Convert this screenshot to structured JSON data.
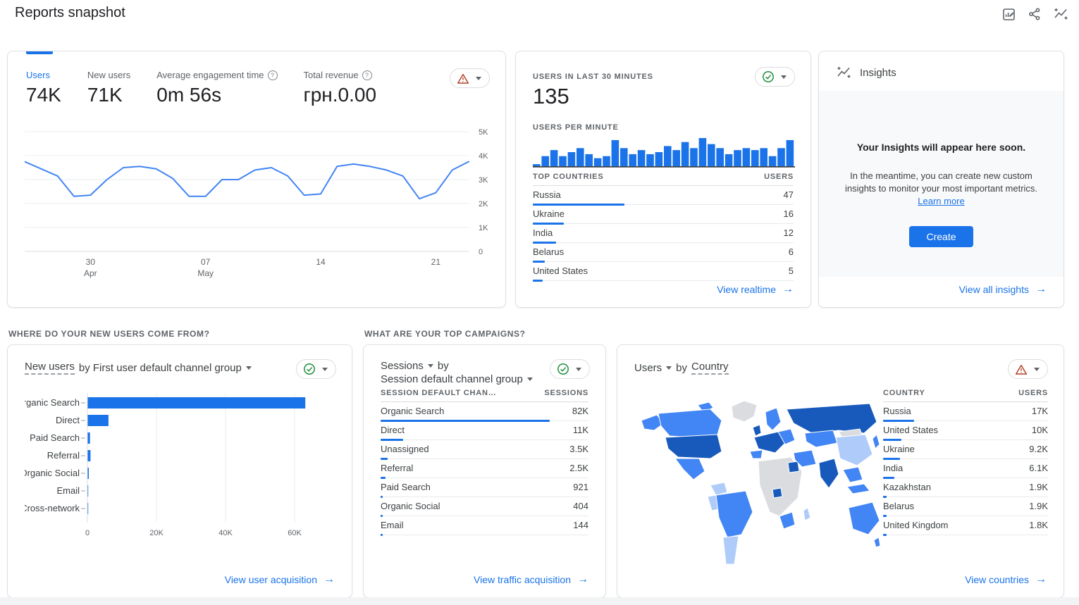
{
  "page": {
    "title": "Reports snapshot"
  },
  "colors": {
    "accent": "#1a73e8",
    "link": "#1a73e8",
    "line": "#4285f4",
    "bar": "#1a73e8",
    "warning": "#b3412c",
    "ok": "#1e8e3e",
    "map_dark": "#185abc",
    "map_medium": "#4285f4",
    "map_light": "#aecbfa",
    "map_nodata": "#dadce0"
  },
  "header_icons": [
    {
      "name": "customize-report-icon"
    },
    {
      "name": "share-icon"
    },
    {
      "name": "insights-icon"
    }
  ],
  "cards": {
    "snapshot": {
      "status_icon": "warning-icon",
      "metrics": [
        {
          "label": "Users",
          "value": "74K",
          "active": true
        },
        {
          "label": "New users",
          "value": "71K"
        },
        {
          "label": "Average engagement time",
          "value": "0m 56s",
          "help": true
        },
        {
          "label": "Total revenue",
          "value": "грн.0.00",
          "help": true
        }
      ],
      "chart_data": {
        "type": "line",
        "series": [
          {
            "name": "Users",
            "values_k": [
              3.75,
              3.45,
              3.15,
              2.3,
              2.35,
              3.0,
              3.5,
              3.55,
              3.45,
              3.05,
              2.3,
              2.3,
              3.0,
              3.0,
              3.4,
              3.5,
              3.15,
              2.35,
              2.4,
              3.55,
              3.65,
              3.55,
              3.4,
              3.15,
              2.2,
              2.45,
              3.4,
              3.75
            ]
          }
        ],
        "ylim_k": [
          0,
          5
        ],
        "y_ticks": [
          "0",
          "1K",
          "2K",
          "3K",
          "4K",
          "5K"
        ],
        "x_ticks": [
          {
            "i": 4,
            "l1": "30",
            "l2": "Apr"
          },
          {
            "i": 11,
            "l1": "07",
            "l2": "May"
          },
          {
            "i": 18,
            "l1": "14"
          },
          {
            "i": 25,
            "l1": "21"
          }
        ],
        "grid": true,
        "legend": "none"
      }
    },
    "realtime": {
      "title": "USERS IN LAST 30 MINUTES",
      "value": "135",
      "per_minute_label": "USERS PER MINUTE",
      "status_icon": "ok-check-icon",
      "chart_data": {
        "type": "bar",
        "title": "Users per minute",
        "values": [
          1,
          5,
          8,
          5,
          7,
          9,
          6,
          4,
          5,
          13,
          9,
          6,
          8,
          6,
          7,
          10,
          8,
          12,
          9,
          14,
          11,
          9,
          6,
          8,
          9,
          8,
          9,
          5,
          9,
          13
        ],
        "ymax": 14
      },
      "table": {
        "col1": "TOP COUNTRIES",
        "col2": "USERS",
        "rows": [
          {
            "label": "Russia",
            "value": "47",
            "num": 47
          },
          {
            "label": "Ukraine",
            "value": "16",
            "num": 16
          },
          {
            "label": "India",
            "value": "12",
            "num": 12
          },
          {
            "label": "Belarus",
            "value": "6",
            "num": 6
          },
          {
            "label": "United States",
            "value": "5",
            "num": 5
          }
        ]
      },
      "link": "View realtime"
    },
    "insights": {
      "title": "Insights",
      "headline": "Your Insights will appear here soon.",
      "body": "In the meantime, you can create new custom insights to monitor your most important metrics.",
      "inline_link": "Learn more",
      "button": "Create",
      "link": "View all insights"
    },
    "acquisition": {
      "section": "WHERE DO YOUR NEW USERS COME FROM?",
      "title_metric": "New users",
      "title_rest": "by First user default channel group",
      "status_icon": "ok-check-icon",
      "chart_data": {
        "type": "bar",
        "orientation": "horizontal",
        "title": "New users by First user default channel group",
        "categories": [
          "Organic Search",
          "Direct",
          "Paid Search",
          "Referral",
          "Organic Social",
          "Email",
          "Cross-network"
        ],
        "values": [
          63000,
          6000,
          650,
          800,
          300,
          90,
          40
        ],
        "x_ticks": [
          "0",
          "20K",
          "40K",
          "60K"
        ],
        "x_tick_step": 20000,
        "grid": true
      },
      "link": "View user acquisition"
    },
    "campaigns": {
      "section": "WHAT ARE YOUR TOP CAMPAIGNS?",
      "title_metric": "Sessions",
      "title_by": "by",
      "title_dimension": "Session default channel group",
      "status_icon": "ok-check-icon",
      "table": {
        "col1": "SESSION DEFAULT CHAN…",
        "col2": "SESSIONS",
        "rows": [
          {
            "label": "Organic Search",
            "value": "82K",
            "num": 82000
          },
          {
            "label": "Direct",
            "value": "11K",
            "num": 11000
          },
          {
            "label": "Unassigned",
            "value": "3.5K",
            "num": 3500
          },
          {
            "label": "Referral",
            "value": "2.5K",
            "num": 2500
          },
          {
            "label": "Paid Search",
            "value": "921",
            "num": 921
          },
          {
            "label": "Organic Social",
            "value": "404",
            "num": 404
          },
          {
            "label": "Email",
            "value": "144",
            "num": 144
          }
        ]
      },
      "link": "View traffic acquisition"
    },
    "geo": {
      "title_metric": "Users",
      "title_by": "by",
      "title_dimension": "Country",
      "status_icon": "warning-icon",
      "chart_data": {
        "type": "heatmap",
        "subtype": "world-choropleth",
        "metric": "Users",
        "dimension": "Country",
        "values": {
          "Russia": 17000,
          "United States": 10000,
          "Ukraine": 9200,
          "India": 6100,
          "Kazakhstan": 1900,
          "Belarus": 1900,
          "United Kingdom": 1800
        }
      },
      "table": {
        "col1": "COUNTRY",
        "col2": "USERS",
        "rows": [
          {
            "label": "Russia",
            "value": "17K",
            "num": 17000
          },
          {
            "label": "United States",
            "value": "10K",
            "num": 10000
          },
          {
            "label": "Ukraine",
            "value": "9.2K",
            "num": 9200
          },
          {
            "label": "India",
            "value": "6.1K",
            "num": 6100
          },
          {
            "label": "Kazakhstan",
            "value": "1.9K",
            "num": 1900
          },
          {
            "label": "Belarus",
            "value": "1.9K",
            "num": 1900
          },
          {
            "label": "United Kingdom",
            "value": "1.8K",
            "num": 1800
          }
        ]
      },
      "link": "View countries"
    }
  }
}
